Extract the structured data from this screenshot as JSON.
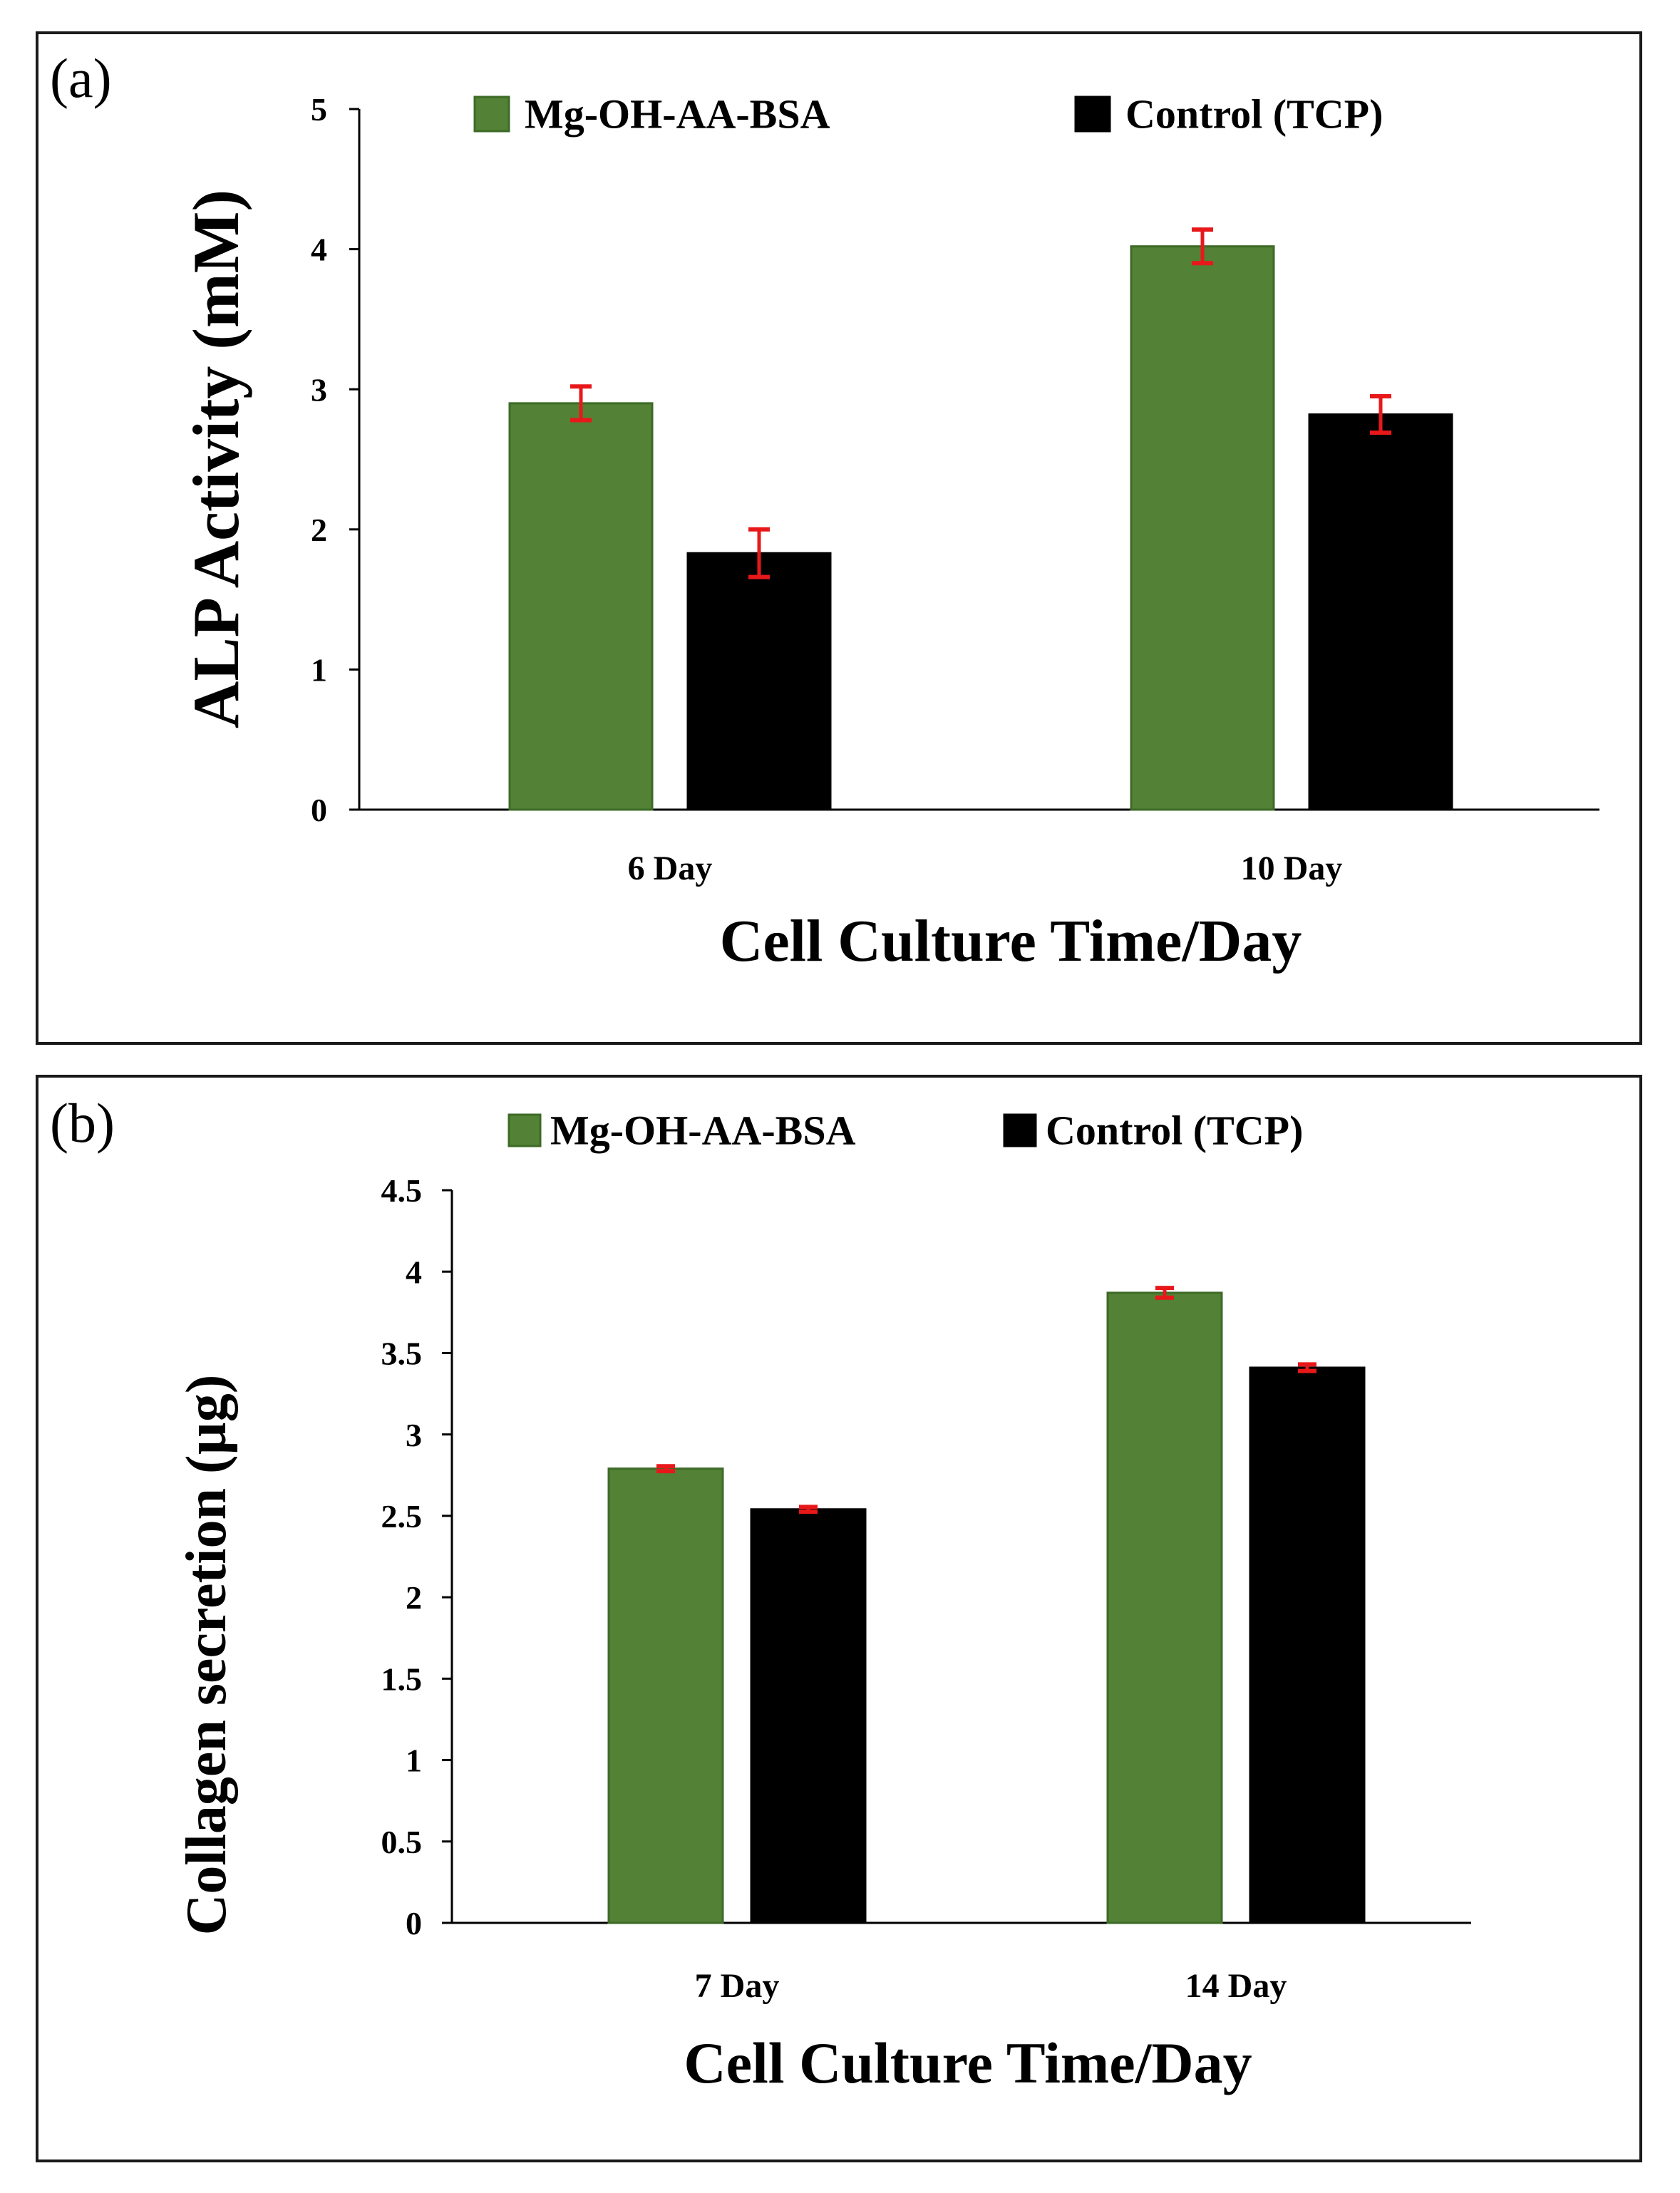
{
  "colors": {
    "series_green": "#538135",
    "series_green_edge": "#3d6b27",
    "series_black": "#000000",
    "error_bar": "#e8181a",
    "axis": "#000000",
    "frame": "#1a1a1a"
  },
  "chart_data": [
    {
      "panel_label": "(a)",
      "type": "bar",
      "ylabel": "ALP Activity (mM)",
      "xlabel": "Cell Culture Time/Day",
      "ylim": [
        0,
        5
      ],
      "ytick_values": [
        0,
        1,
        2,
        3,
        4,
        5
      ],
      "ytick_labels": [
        "0",
        "1",
        "2",
        "3",
        "4",
        "5"
      ],
      "categories": [
        "6 Day",
        "10 Day"
      ],
      "legend_position": "top",
      "series": [
        {
          "name": "Mg-OH-AA-BSA",
          "color": "#538135",
          "values": [
            2.9,
            4.02
          ],
          "errors": [
            0.12,
            0.12
          ]
        },
        {
          "name": "Control (TCP)",
          "color": "#000000",
          "values": [
            1.83,
            2.82
          ],
          "errors": [
            0.17,
            0.13
          ]
        }
      ]
    },
    {
      "panel_label": "(b)",
      "type": "bar",
      "ylabel": "Collagen secretion (µg)",
      "xlabel": "Cell Culture Time/Day",
      "ylim": [
        0,
        4.5
      ],
      "ytick_values": [
        0,
        0.5,
        1,
        1.5,
        2,
        2.5,
        3,
        3.5,
        4,
        4.5
      ],
      "ytick_labels": [
        "0",
        "0.5",
        "1",
        "1.5",
        "2",
        "2.5",
        "3",
        "3.5",
        "4",
        "4.5"
      ],
      "categories": [
        "7 Day",
        "14 Day"
      ],
      "legend_position": "top",
      "series": [
        {
          "name": "Mg-OH-AA-BSA",
          "color": "#538135",
          "values": [
            2.79,
            3.87
          ],
          "errors": [
            0.015,
            0.03
          ]
        },
        {
          "name": "Control (TCP)",
          "color": "#000000",
          "values": [
            2.54,
            3.41
          ],
          "errors": [
            0.015,
            0.02
          ]
        }
      ]
    }
  ]
}
